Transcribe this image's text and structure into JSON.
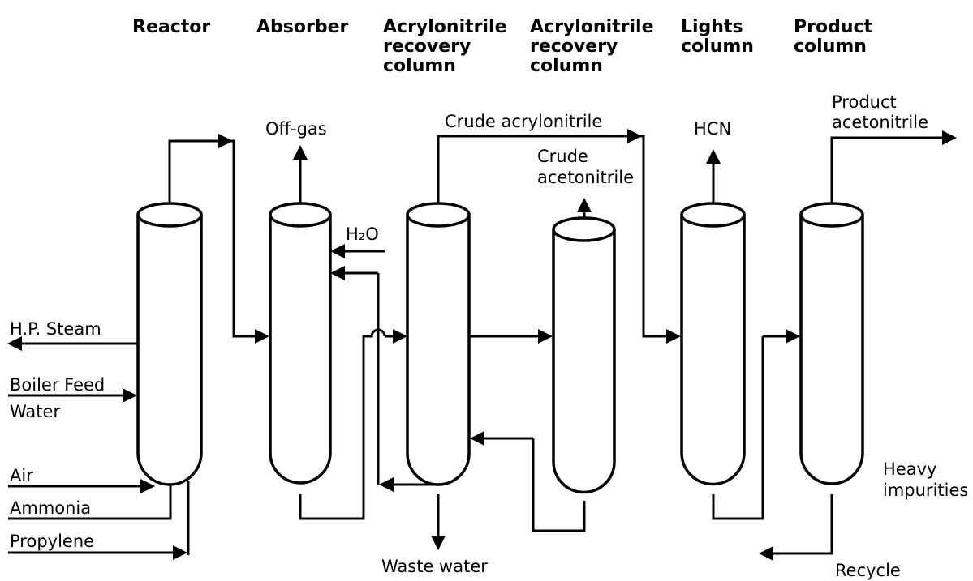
{
  "columns": [
    {
      "lines": [
        "Reactor"
      ]
    },
    {
      "lines": [
        "Absorber"
      ]
    },
    {
      "lines": [
        "Acrylonitrile",
        "recovery",
        "column"
      ]
    },
    {
      "lines": [
        "Acrylonitrile",
        "recovery",
        "column"
      ]
    },
    {
      "lines": [
        "Lights",
        "column"
      ]
    },
    {
      "lines": [
        "Product",
        "column"
      ]
    }
  ],
  "streams": {
    "off_gas": "Off-gas",
    "crude_acrylonitrile": "Crude acrylonitrile",
    "crude_acetonitrile": [
      "Crude",
      "acetonitrile"
    ],
    "hcn": "HCN",
    "product_acetonitrile": [
      "Product",
      "acetonitrile"
    ],
    "water": "H₂O",
    "hp_steam": "H.P. Steam",
    "boiler_feed_water": [
      "Boiler Feed",
      "Water"
    ],
    "air": "Air",
    "ammonia": "Ammonia",
    "propylene": "Propylene",
    "waste_water": "Waste water",
    "heavy_impurities": [
      "Heavy",
      "impurities"
    ],
    "recycle": "Recycle"
  }
}
